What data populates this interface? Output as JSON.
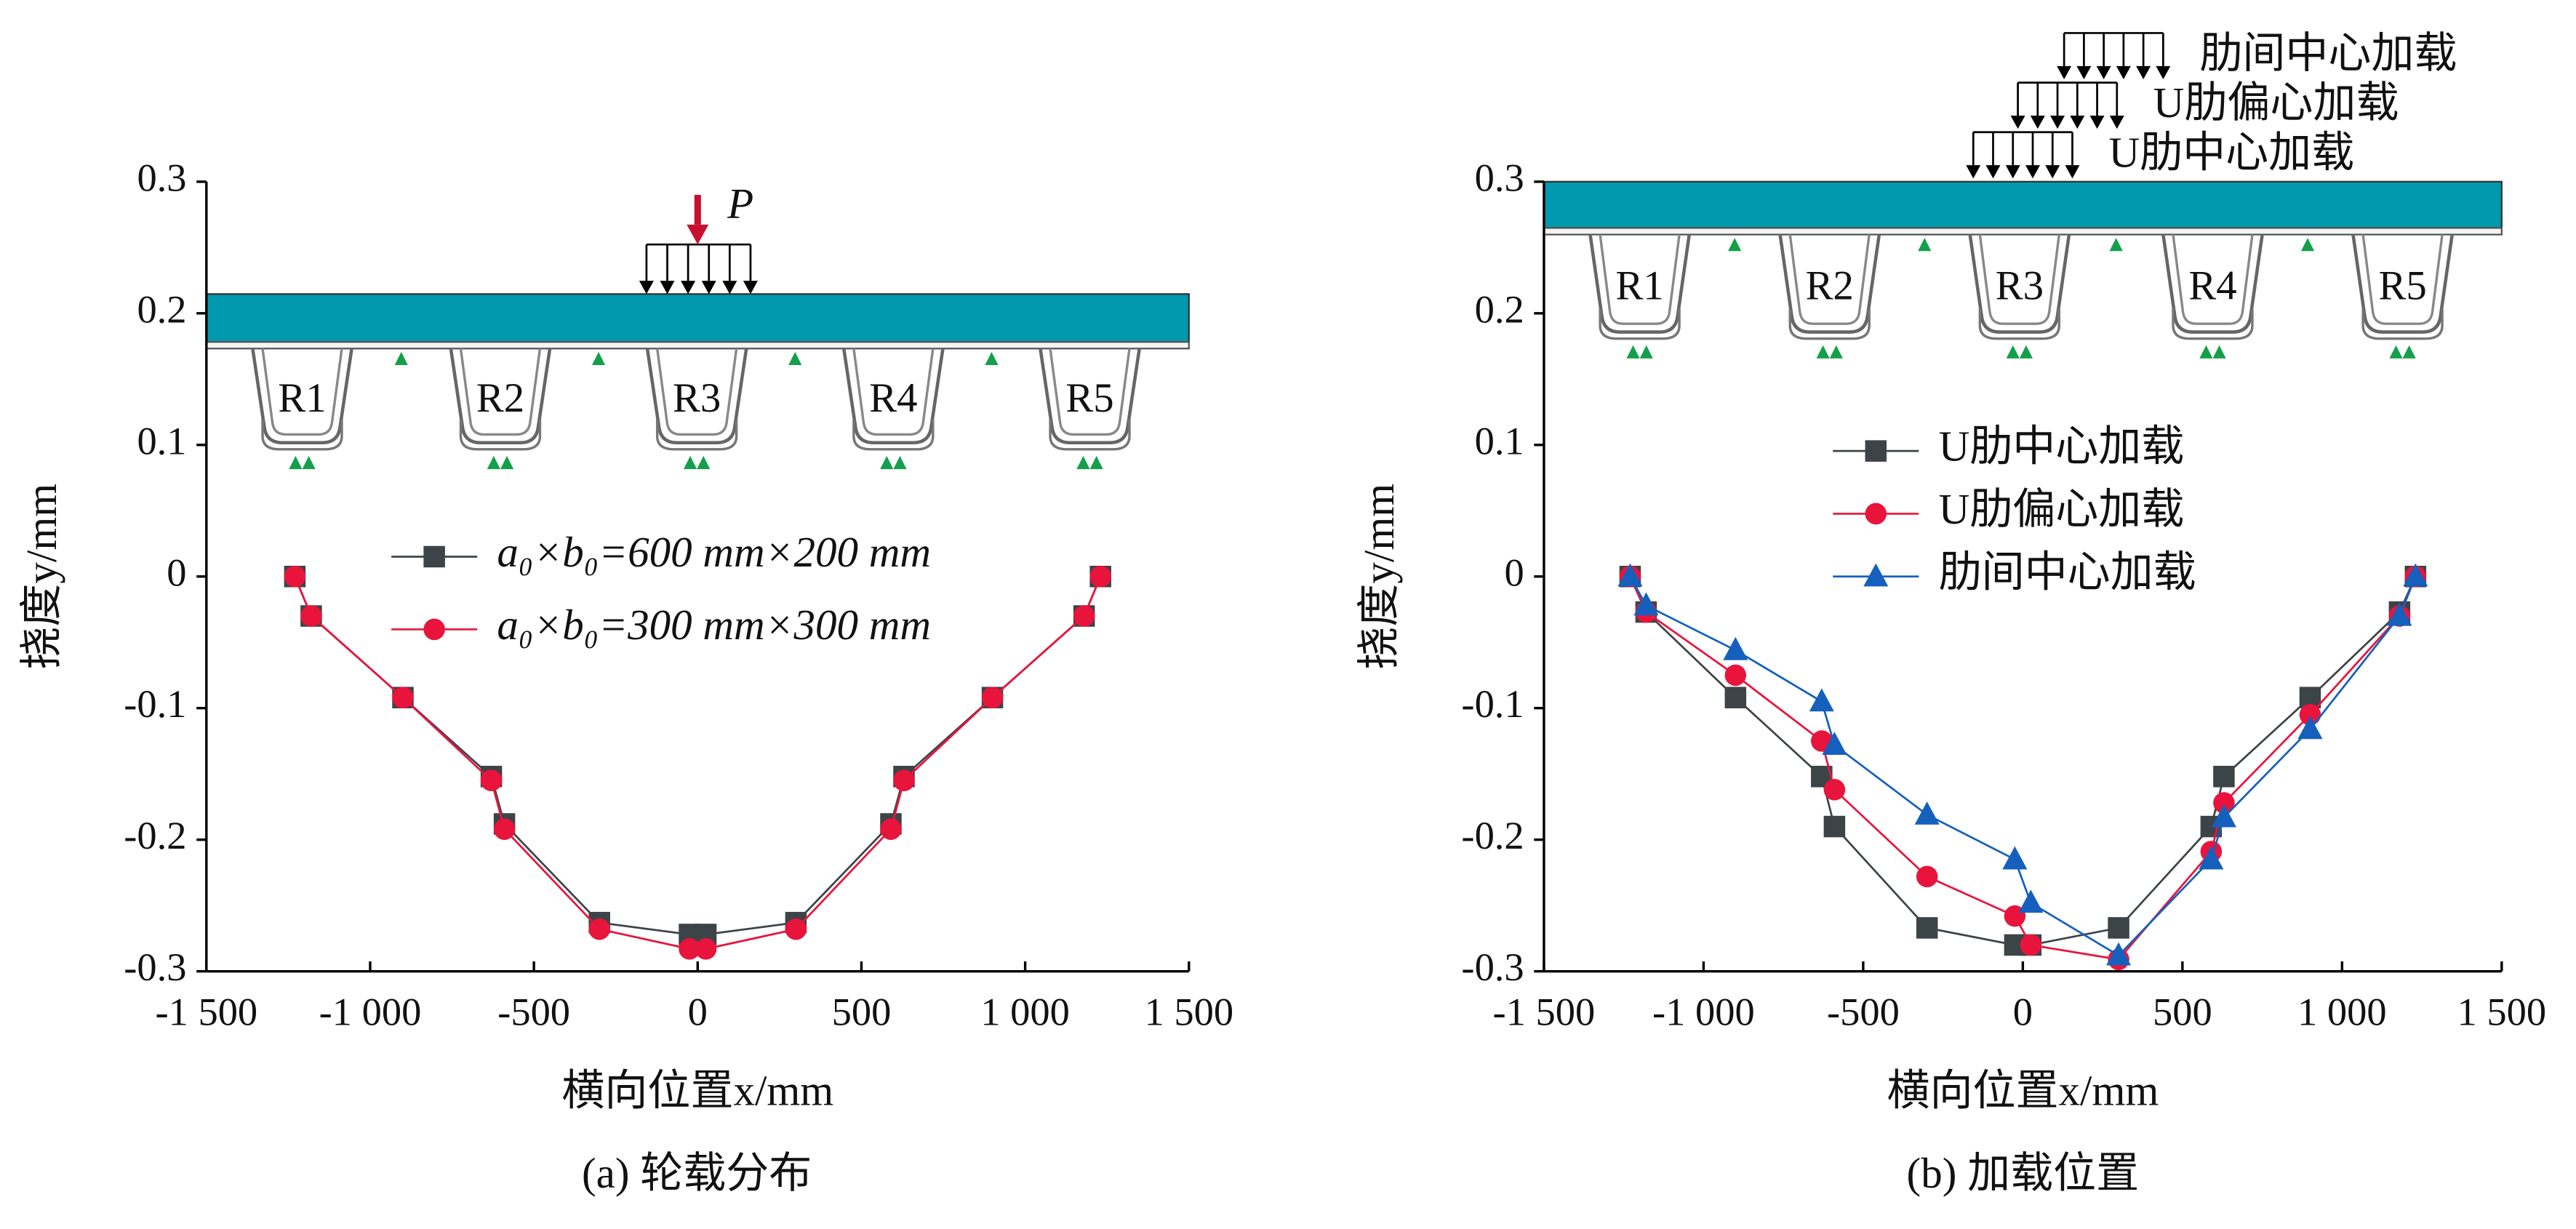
{
  "chart_data": [
    {
      "type": "line",
      "caption": "(a) 轮载分布",
      "xlabel": "横向位置x/mm",
      "ylabel": "挠度y/mm",
      "xlim": [
        -1500,
        1500
      ],
      "ylim": [
        -0.3,
        0.3
      ],
      "xticks": [
        {
          "value": -1500,
          "label": "-1 500"
        },
        {
          "value": -1000,
          "label": "-1 000"
        },
        -500,
        0,
        500,
        {
          "value": 1000,
          "label": "1 000"
        },
        {
          "value": 1500,
          "label": "1 500"
        }
      ],
      "yticks": [
        0.3,
        0.2,
        0.1,
        0,
        -0.1,
        -0.2,
        -0.3
      ],
      "load_label": "P",
      "rib_labels": [
        "R1",
        "R2",
        "R3",
        "R4",
        "R5"
      ],
      "x": [
        -1230,
        -1180,
        -900,
        -630,
        -590,
        -300,
        -25,
        25,
        300,
        590,
        630,
        900,
        1180,
        1230
      ],
      "series": [
        {
          "name": "a₀×b₀=600 mm×200 mm",
          "color": "#3d4447",
          "marker": "square",
          "values": [
            0,
            -0.03,
            -0.092,
            -0.152,
            -0.188,
            -0.263,
            -0.272,
            -0.272,
            -0.263,
            -0.188,
            -0.152,
            -0.092,
            -0.03,
            0
          ]
        },
        {
          "name": "a₀×b₀=300 mm×300 mm",
          "color": "#e8143c",
          "marker": "circle",
          "values": [
            0,
            -0.03,
            -0.092,
            -0.155,
            -0.192,
            -0.268,
            -0.283,
            -0.283,
            -0.268,
            -0.192,
            -0.155,
            -0.092,
            -0.03,
            0
          ]
        }
      ]
    },
    {
      "type": "line",
      "caption": "(b) 加载位置",
      "xlabel": "横向位置x/mm",
      "ylabel": "挠度y/mm",
      "xlim": [
        -1500,
        1500
      ],
      "ylim": [
        -0.3,
        0.3
      ],
      "xticks": [
        {
          "value": -1500,
          "label": "-1 500"
        },
        {
          "value": -1000,
          "label": "-1 000"
        },
        -500,
        0,
        500,
        {
          "value": 1000,
          "label": "1 000"
        },
        {
          "value": 1500,
          "label": "1 500"
        }
      ],
      "yticks": [
        0.3,
        0.2,
        0.1,
        0,
        -0.1,
        -0.2,
        -0.3
      ],
      "rib_labels": [
        "R1",
        "R2",
        "R3",
        "R4",
        "R5"
      ],
      "x": [
        -1230,
        -1180,
        -900,
        -630,
        -590,
        -300,
        -25,
        25,
        300,
        590,
        630,
        900,
        1180,
        1230
      ],
      "series": [
        {
          "name": "U肋中心加载",
          "color": "#3d4447",
          "marker": "square",
          "values": [
            0,
            -0.027,
            -0.092,
            -0.152,
            -0.19,
            -0.267,
            -0.28,
            -0.28,
            -0.267,
            -0.19,
            -0.152,
            -0.092,
            -0.027,
            0
          ]
        },
        {
          "name": "U肋偏心加载",
          "color": "#e8143c",
          "marker": "circle",
          "values": [
            0,
            -0.027,
            -0.075,
            -0.125,
            -0.162,
            -0.228,
            -0.258,
            -0.28,
            -0.291,
            -0.209,
            -0.172,
            -0.105,
            -0.03,
            0
          ]
        },
        {
          "name": "肋间中心加载",
          "color": "#1560bd",
          "marker": "triangle",
          "values": [
            0,
            -0.022,
            -0.056,
            -0.095,
            -0.128,
            -0.181,
            -0.215,
            -0.248,
            -0.288,
            -0.215,
            -0.183,
            -0.116,
            -0.03,
            0
          ]
        }
      ]
    }
  ]
}
